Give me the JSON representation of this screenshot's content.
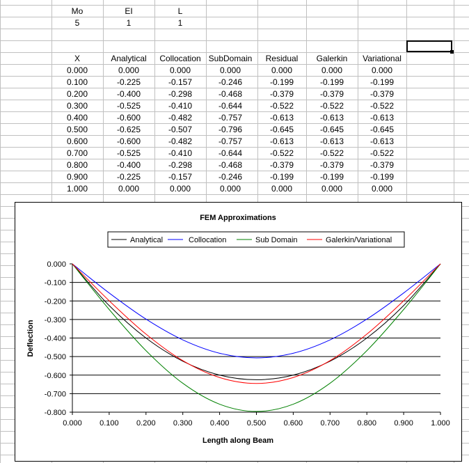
{
  "params": {
    "headers": [
      "Mo",
      "EI",
      "L"
    ],
    "values": [
      "5",
      "1",
      "1"
    ]
  },
  "table": {
    "headers": [
      "X",
      "Analytical",
      "Collocation",
      "SubDomain",
      "Residual",
      "Galerkin",
      "Variational"
    ],
    "rows": [
      [
        "0.000",
        "0.000",
        "0.000",
        "0.000",
        "0.000",
        "0.000",
        "0.000"
      ],
      [
        "0.100",
        "-0.225",
        "-0.157",
        "-0.246",
        "-0.199",
        "-0.199",
        "-0.199"
      ],
      [
        "0.200",
        "-0.400",
        "-0.298",
        "-0.468",
        "-0.379",
        "-0.379",
        "-0.379"
      ],
      [
        "0.300",
        "-0.525",
        "-0.410",
        "-0.644",
        "-0.522",
        "-0.522",
        "-0.522"
      ],
      [
        "0.400",
        "-0.600",
        "-0.482",
        "-0.757",
        "-0.613",
        "-0.613",
        "-0.613"
      ],
      [
        "0.500",
        "-0.625",
        "-0.507",
        "-0.796",
        "-0.645",
        "-0.645",
        "-0.645"
      ],
      [
        "0.600",
        "-0.600",
        "-0.482",
        "-0.757",
        "-0.613",
        "-0.613",
        "-0.613"
      ],
      [
        "0.700",
        "-0.525",
        "-0.410",
        "-0.644",
        "-0.522",
        "-0.522",
        "-0.522"
      ],
      [
        "0.800",
        "-0.400",
        "-0.298",
        "-0.468",
        "-0.379",
        "-0.379",
        "-0.379"
      ],
      [
        "0.900",
        "-0.225",
        "-0.157",
        "-0.246",
        "-0.199",
        "-0.199",
        "-0.199"
      ],
      [
        "1.000",
        "0.000",
        "0.000",
        "0.000",
        "0.000",
        "0.000",
        "0.000"
      ]
    ]
  },
  "colors": {
    "gridline": "#c0c0c0",
    "analytical": "#000000",
    "collocation": "#0000ff",
    "subdomain": "#008000",
    "galerkin": "#ff0000"
  },
  "chart_data": {
    "type": "line",
    "title": "FEM Approximations",
    "xlabel": "Length along Beam",
    "ylabel": "Deflection",
    "xlim": [
      0,
      1
    ],
    "ylim": [
      -0.8,
      0
    ],
    "x_ticks": [
      "0.000",
      "0.100",
      "0.200",
      "0.300",
      "0.400",
      "0.500",
      "0.600",
      "0.700",
      "0.800",
      "0.900",
      "1.000"
    ],
    "y_ticks": [
      "0.000",
      "-0.100",
      "-0.200",
      "-0.300",
      "-0.400",
      "-0.500",
      "-0.600",
      "-0.700",
      "-0.800"
    ],
    "grid": "horizontal",
    "legend_position": "top",
    "x": [
      0,
      0.1,
      0.2,
      0.3,
      0.4,
      0.5,
      0.6,
      0.7,
      0.8,
      0.9,
      1.0
    ],
    "series": [
      {
        "name": "Analytical",
        "color": "#000000",
        "values": [
          0,
          -0.225,
          -0.4,
          -0.525,
          -0.6,
          -0.625,
          -0.6,
          -0.525,
          -0.4,
          -0.225,
          0
        ]
      },
      {
        "name": "Collocation",
        "color": "#0000ff",
        "values": [
          0,
          -0.157,
          -0.298,
          -0.41,
          -0.482,
          -0.507,
          -0.482,
          -0.41,
          -0.298,
          -0.157,
          0
        ]
      },
      {
        "name": "Sub Domain",
        "color": "#008000",
        "values": [
          0,
          -0.246,
          -0.468,
          -0.644,
          -0.757,
          -0.796,
          -0.757,
          -0.644,
          -0.468,
          -0.246,
          0
        ]
      },
      {
        "name": "Galerkin/Variational",
        "color": "#ff0000",
        "values": [
          0,
          -0.199,
          -0.379,
          -0.522,
          -0.613,
          -0.645,
          -0.613,
          -0.522,
          -0.379,
          -0.199,
          0
        ]
      }
    ]
  }
}
